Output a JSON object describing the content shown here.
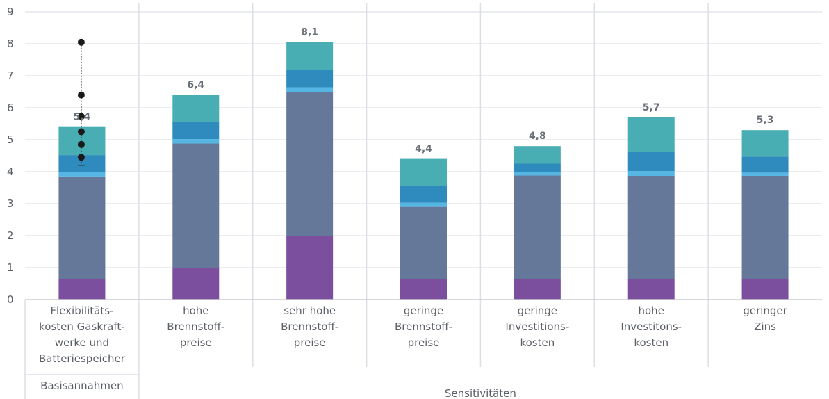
{
  "chart_data": {
    "type": "bar",
    "stacked": true,
    "grid": true,
    "ylim": [
      0,
      9
    ],
    "yticks": [
      "0",
      "1",
      "2",
      "3",
      "4",
      "5",
      "6",
      "7",
      "8",
      "9"
    ],
    "categories": [
      [
        "Flexibilitäts-",
        "kosten Gaskraft-",
        "werke und",
        "Batteriespeicher"
      ],
      [
        "hohe",
        "Brennstoff-",
        "preise"
      ],
      [
        "sehr hohe",
        "Brennstoff-",
        "preise"
      ],
      [
        "geringe",
        "Brennstoff-",
        "preise"
      ],
      [
        "geringe",
        "Investitions-",
        "kosten"
      ],
      [
        "hohe",
        "Investitons-",
        "kosten"
      ],
      [
        "geringer",
        "Zins"
      ]
    ],
    "groups": [
      {
        "label": "Basisannahmen",
        "from": 0,
        "to": 0
      },
      {
        "label": "Sensitivitäten",
        "from": 1,
        "to": 6
      }
    ],
    "totals": [
      "5,4",
      "6,4",
      "8,1",
      "4,4",
      "4,8",
      "5,7",
      "5,3"
    ],
    "total_values": [
      5.4,
      6.4,
      8.05,
      4.4,
      4.8,
      5.7,
      5.3
    ],
    "series": [
      {
        "color": "#7b4f9e",
        "values": [
          0.65,
          1.0,
          2.0,
          0.65,
          0.65,
          0.65,
          0.65
        ]
      },
      {
        "color": "#667899",
        "values": [
          3.2,
          3.88,
          4.5,
          2.25,
          3.23,
          3.22,
          3.22
        ]
      },
      {
        "color": "#56b6e3",
        "values": [
          0.15,
          0.14,
          0.14,
          0.13,
          0.1,
          0.15,
          0.1
        ]
      },
      {
        "color": "#2f8bbd",
        "values": [
          0.52,
          0.53,
          0.55,
          0.52,
          0.27,
          0.6,
          0.5
        ]
      },
      {
        "color": "#48aeb4",
        "values": [
          0.9,
          0.85,
          0.86,
          0.85,
          0.55,
          1.08,
          0.83
        ]
      }
    ],
    "error_points": {
      "category_index": 0,
      "values": [
        4.45,
        4.85,
        5.25,
        5.73,
        6.4,
        8.05
      ],
      "whisker_low": 4.2
    }
  }
}
